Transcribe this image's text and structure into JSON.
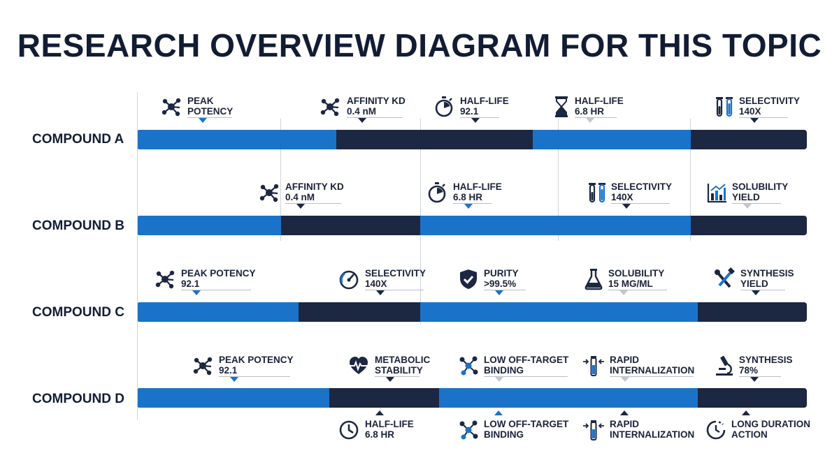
{
  "title": "RESEARCH OVERVIEW DIAGRAM FOR THIS TOPIC",
  "colors": {
    "blue": "#1a73c9",
    "dark": "#1c2741",
    "gray": "#c3c7cd"
  },
  "rows": [
    {
      "label": "COMPOUND A",
      "markers": [
        {
          "icon": "molecule-icon",
          "line1": "PEAK",
          "line2": "POTENCY"
        },
        {
          "icon": "molecule-icon",
          "line1": "AFFINITY KD",
          "line2": "0.4 nM"
        },
        {
          "icon": "stopwatch-icon",
          "line1": "HALF-LIFE",
          "line2": "92.1"
        },
        {
          "icon": "hourglass-icon",
          "line1": "HALF-LIFE",
          "line2": "6.8 HR"
        },
        {
          "icon": "test-tubes-icon",
          "line1": "SELECTIVITY",
          "line2": "140X"
        }
      ]
    },
    {
      "label": "COMPOUND B",
      "markers": [
        {
          "icon": "molecule-icon",
          "line1": "AFFINITY KD",
          "line2": "0.4 nM"
        },
        {
          "icon": "stopwatch-icon",
          "line1": "HALF-LIFE",
          "line2": "6.8 HR"
        },
        {
          "icon": "test-tubes-icon",
          "line1": "SELECTIVITY",
          "line2": "140X"
        },
        {
          "icon": "bar-chart-icon",
          "line1": "SOLUBILITY",
          "line2": "YIELD"
        }
      ]
    },
    {
      "label": "COMPOUND C",
      "markers": [
        {
          "icon": "molecule-icon",
          "line1": "PEAK POTENCY",
          "line2": "92.1"
        },
        {
          "icon": "gauge-icon",
          "line1": "SELECTIVITY",
          "line2": "140X"
        },
        {
          "icon": "shield-check-icon",
          "line1": "PURITY",
          "line2": ">99.5%"
        },
        {
          "icon": "flask-icon",
          "line1": "SOLUBILITY",
          "line2": "15 MG/ML"
        },
        {
          "icon": "tools-icon",
          "line1": "SYNTHESIS",
          "line2": "YIELD"
        }
      ]
    },
    {
      "label": "COMPOUND D",
      "markers": [
        {
          "icon": "molecule-icon",
          "line1": "PEAK POTENCY",
          "line2": "92.1"
        },
        {
          "icon": "heart-pulse-icon",
          "line1": "METABOLIC",
          "line2": "STABILITY"
        },
        {
          "icon": "network-icon",
          "line1": "LOW OFF-TARGET",
          "line2": "BINDING"
        },
        {
          "icon": "vial-arrows-icon",
          "line1": "RAPID",
          "line2": "INTERNALIZATION"
        },
        {
          "icon": "microscope-icon",
          "line1": "SYNTHESIS",
          "line2": "78%"
        }
      ],
      "markers_below": [
        {
          "icon": "clock-icon",
          "line1": "HALF-LIFE",
          "line2": "6.8 HR"
        },
        {
          "icon": "network-icon",
          "line1": "LOW OFF-TARGET",
          "line2": "BINDING"
        },
        {
          "icon": "vial-arrows-icon",
          "line1": "RAPID",
          "line2": "INTERNALIZATION"
        },
        {
          "icon": "clock-dashed-icon",
          "line1": "LONG DURATION",
          "line2": "ACTION"
        }
      ]
    }
  ]
}
